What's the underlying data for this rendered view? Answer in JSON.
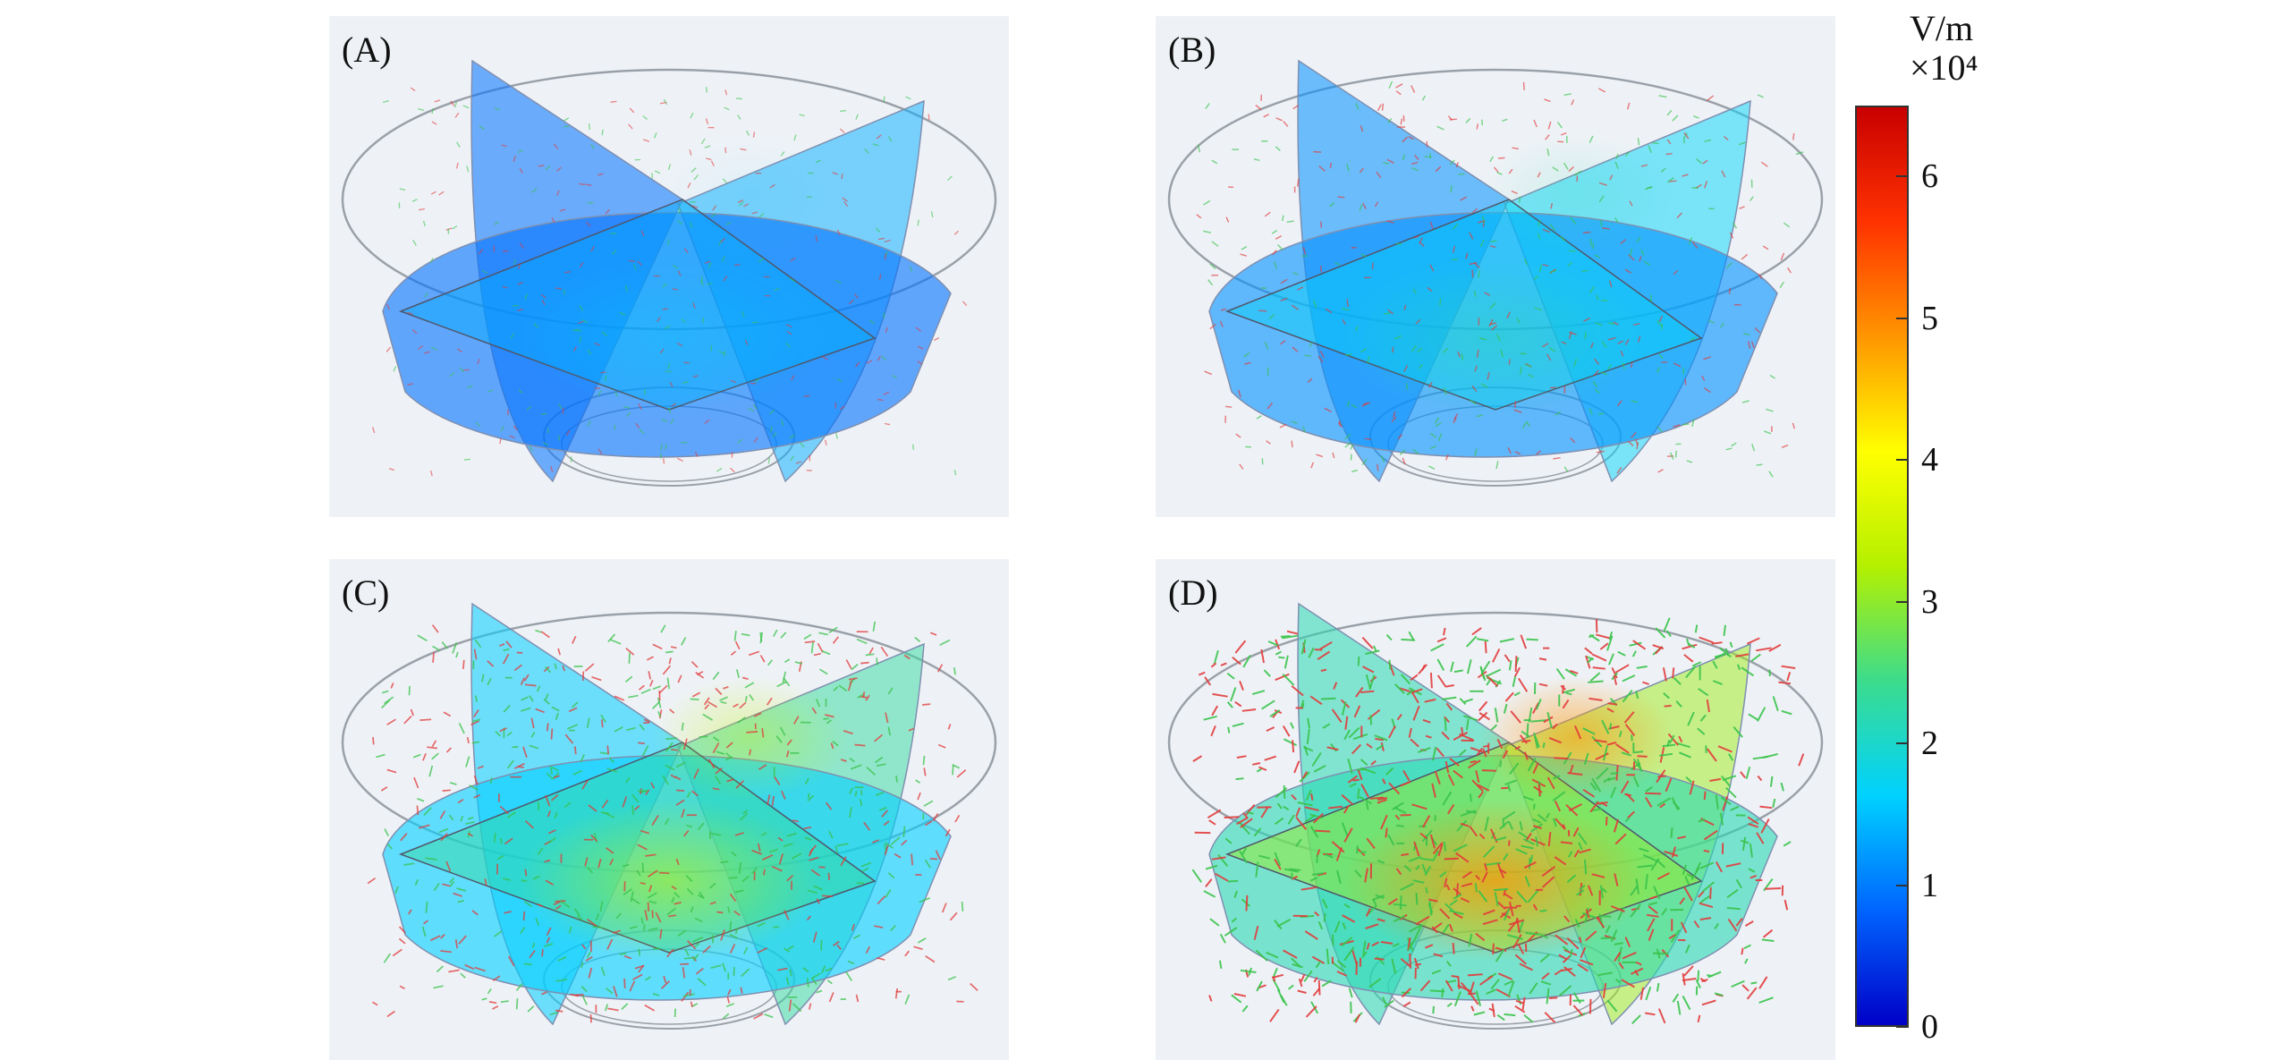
{
  "panels": [
    {
      "label": "(A)",
      "intensity": 0.08
    },
    {
      "label": "(B)",
      "intensity": 0.22
    },
    {
      "label": "(C)",
      "intensity": 0.5
    },
    {
      "label": "(D)",
      "intensity": 0.85
    }
  ],
  "colorbar": {
    "unit": "V/m",
    "scale": "×10⁴",
    "min": 0,
    "max": 6.5,
    "ticks": [
      "0",
      "1",
      "2",
      "3",
      "4",
      "5",
      "6"
    ],
    "colors": [
      "#0000c8",
      "#0064ff",
      "#00d2ff",
      "#3cdc8c",
      "#b4f000",
      "#ffff00",
      "#ff9600",
      "#ff3200",
      "#c80000"
    ]
  }
}
